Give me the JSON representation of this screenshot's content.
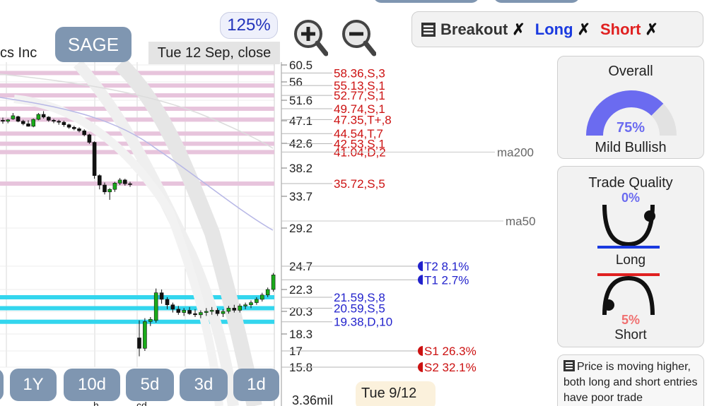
{
  "header": {
    "company_partial": "cs Inc",
    "sage_label": "SAGE",
    "zoom_level": "125%",
    "date_label": "Tue 12 Sep, close"
  },
  "filters": {
    "breakout": "Breakout",
    "long": "Long",
    "short": "Short",
    "x_mark": "✗"
  },
  "overall": {
    "title": "Overall",
    "percent": "75%",
    "percent_value": 75,
    "label": "Mild Bullish"
  },
  "trade_quality": {
    "title": "Trade Quality",
    "long_pct": "0%",
    "long_label": "Long",
    "short_pct": "5%",
    "short_label": "Short"
  },
  "description": "Price is moving higher, both long and short entries have poor trade",
  "timeframes": [
    "",
    "1Y",
    "10d",
    "5d",
    "3d",
    "1d"
  ],
  "bottom_date": "Tue 9/12",
  "volume_label": "3.36mil",
  "x_axis_partial": [
    "h",
    "cd"
  ],
  "chart_data": {
    "type": "candlestick",
    "price_axis": [
      "60.5",
      "56",
      "51.6",
      "47.1",
      "42.6",
      "38.2",
      "33.7",
      "29.2",
      "24.7",
      "22.3",
      "20.3",
      "18.3",
      "17",
      "15.8"
    ],
    "price_axis_values": [
      60.5,
      56,
      51.6,
      47.1,
      42.6,
      38.2,
      33.7,
      29.2,
      24.7,
      22.3,
      20.3,
      18.3,
      17,
      15.8
    ],
    "resistance_levels": [
      {
        "label": "58.36,S,3",
        "price": 58.36
      },
      {
        "label": "55.13,S,1",
        "price": 55.13
      },
      {
        "label": "52.77,S,1",
        "price": 52.77
      },
      {
        "label": "49.74,S,1",
        "price": 49.74
      },
      {
        "label": "47.35,T+,8",
        "price": 47.35
      },
      {
        "label": "44.54,T,7",
        "price": 44.54
      },
      {
        "label": "42.53,S,1",
        "price": 42.53
      },
      {
        "label": "41.04,D,2",
        "price": 41.04
      },
      {
        "label": "35.72,S,5",
        "price": 35.72
      }
    ],
    "support_levels": [
      {
        "label": "21.59,S,8",
        "price": 21.59
      },
      {
        "label": "20.59,S,5",
        "price": 20.59
      },
      {
        "label": "19.38,D,10",
        "price": 19.38
      }
    ],
    "moving_averages": [
      {
        "label": "ma200",
        "price": 41.04
      },
      {
        "label": "ma50",
        "price": 30.2
      }
    ],
    "targets": [
      {
        "label": "T2 8.1%",
        "price": 24.7
      },
      {
        "label": "T1 2.7%",
        "price": 23.3
      }
    ],
    "stops": [
      {
        "label": "S1 26.3%",
        "price": 17
      },
      {
        "label": "S2 32.1%",
        "price": 15.8
      }
    ],
    "candles": [
      [
        47.2,
        47.8,
        46.5,
        47.0
      ],
      [
        47.0,
        47.5,
        46.6,
        47.3
      ],
      [
        47.5,
        48.8,
        47.3,
        48.2
      ],
      [
        48.0,
        48.2,
        46.8,
        47.0
      ],
      [
        47.0,
        47.3,
        46.2,
        46.5
      ],
      [
        46.5,
        47.2,
        45.9,
        46.0
      ],
      [
        46.0,
        47.6,
        45.8,
        47.4
      ],
      [
        47.4,
        48.8,
        47.2,
        48.5
      ],
      [
        48.5,
        49.2,
        47.6,
        47.9
      ],
      [
        47.9,
        48.1,
        46.9,
        47.2
      ],
      [
        47.2,
        47.5,
        46.6,
        47.0
      ],
      [
        47.0,
        47.3,
        46.3,
        46.8
      ],
      [
        46.8,
        47.1,
        45.9,
        46.3
      ],
      [
        46.3,
        46.5,
        45.5,
        45.8
      ],
      [
        45.8,
        46.1,
        45.2,
        45.5
      ],
      [
        45.5,
        45.8,
        44.8,
        45.1
      ],
      [
        45.1,
        45.4,
        44.0,
        44.3
      ],
      [
        44.3,
        44.5,
        42.5,
        42.8
      ],
      [
        42.8,
        43.0,
        36.5,
        37.0
      ],
      [
        37.0,
        37.2,
        34.8,
        35.5
      ],
      [
        35.5,
        35.9,
        34.0,
        34.4
      ],
      [
        34.4,
        35.0,
        33.2,
        34.8
      ],
      [
        34.8,
        36.0,
        34.4,
        35.8
      ],
      [
        35.8,
        36.6,
        35.5,
        36.3
      ],
      [
        36.3,
        36.5,
        35.4,
        35.7
      ],
      [
        35.7,
        36.0,
        35.2,
        35.6
      ],
      [
        18.0,
        19.5,
        16.6,
        17.2
      ],
      [
        17.2,
        19.7,
        17.0,
        19.4
      ],
      [
        19.4,
        19.8,
        19.0,
        19.6
      ],
      [
        19.5,
        22.4,
        19.3,
        22.0
      ],
      [
        22.0,
        22.3,
        21.0,
        21.4
      ],
      [
        21.4,
        21.6,
        20.5,
        20.9
      ],
      [
        20.9,
        21.1,
        20.2,
        20.5
      ],
      [
        20.5,
        20.8,
        20.0,
        20.2
      ],
      [
        20.2,
        20.6,
        19.9,
        20.4
      ],
      [
        20.4,
        20.7,
        20.0,
        20.1
      ],
      [
        20.1,
        20.5,
        19.8,
        20.0
      ],
      [
        20.0,
        20.4,
        19.7,
        20.2
      ],
      [
        20.2,
        20.6,
        19.9,
        20.3
      ],
      [
        20.3,
        20.7,
        20.0,
        20.4
      ],
      [
        20.4,
        20.6,
        19.9,
        20.1
      ],
      [
        20.1,
        20.5,
        19.8,
        20.3
      ],
      [
        20.3,
        20.8,
        20.1,
        20.6
      ],
      [
        20.6,
        20.9,
        20.2,
        20.4
      ],
      [
        20.4,
        21.0,
        20.2,
        20.8
      ],
      [
        20.8,
        21.1,
        20.5,
        20.9
      ],
      [
        20.9,
        21.3,
        20.6,
        21.1
      ],
      [
        21.1,
        21.6,
        20.9,
        21.4
      ],
      [
        21.4,
        22.0,
        21.2,
        21.8
      ],
      [
        21.8,
        22.5,
        21.6,
        22.3
      ],
      [
        22.3,
        24.0,
        22.1,
        23.8
      ]
    ]
  }
}
